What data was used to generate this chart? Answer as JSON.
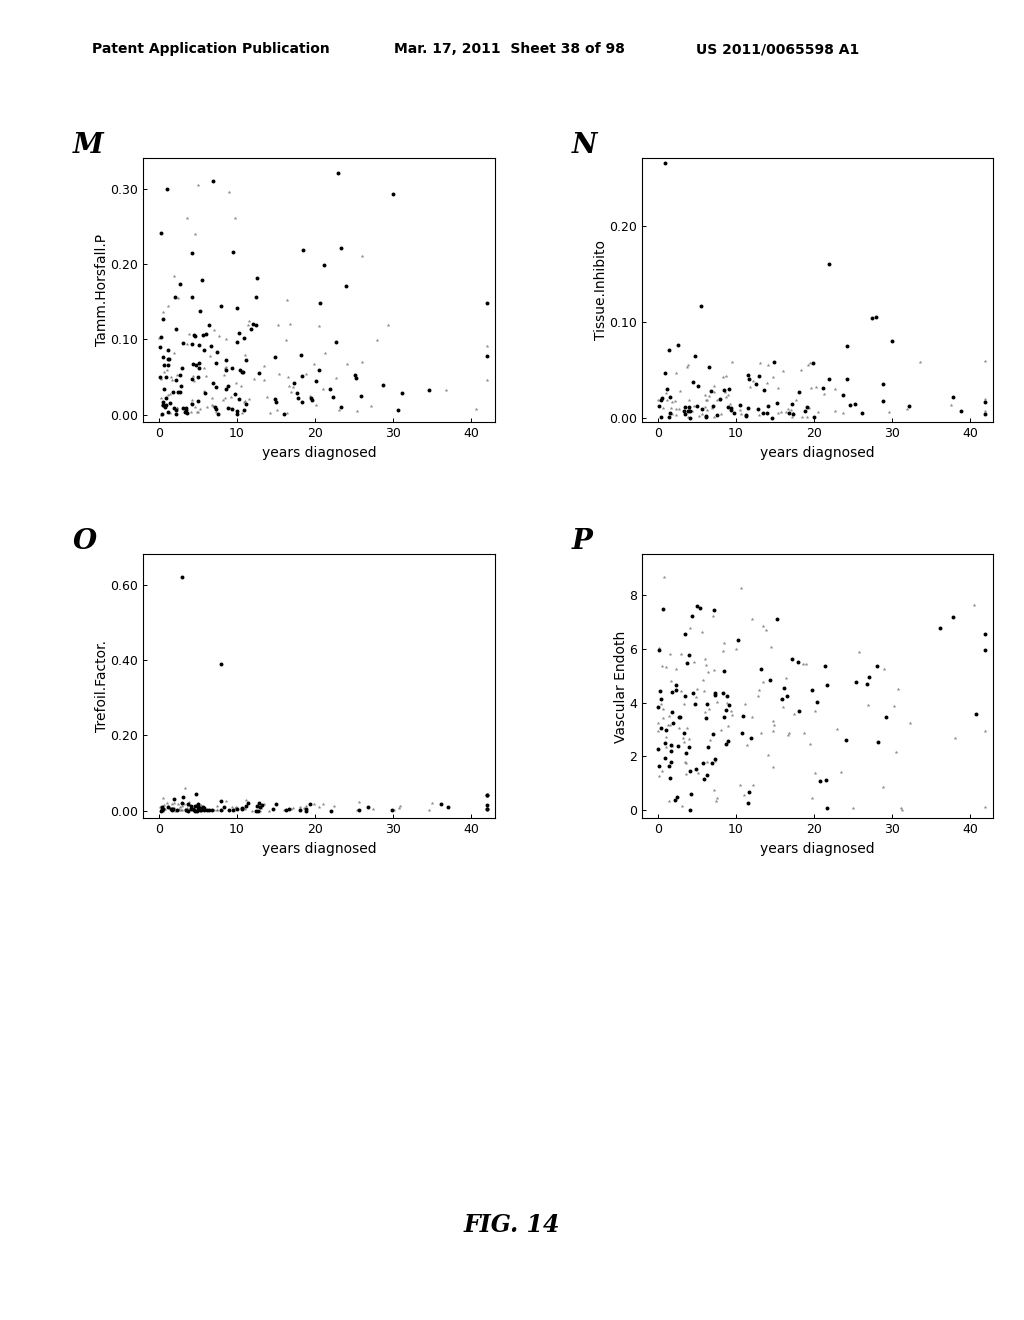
{
  "header_left": "Patent Application Publication",
  "header_mid": "Mar. 17, 2011  Sheet 38 of 98",
  "header_right": "US 2011/0065598 A1",
  "footer": "FIG. 14",
  "plots": [
    {
      "label": "M",
      "ylabel": "Tamm.Horsfall.P",
      "xlabel": "years diagnosed",
      "xlim": [
        -2,
        43
      ],
      "ylim": [
        -0.01,
        0.34
      ],
      "yticks": [
        0.0,
        0.1,
        0.2,
        0.3
      ],
      "xticks": [
        0,
        10,
        20,
        30,
        40
      ]
    },
    {
      "label": "N",
      "ylabel": "Tissue.Inhibito",
      "xlabel": "years diagnosed",
      "xlim": [
        -2,
        43
      ],
      "ylim": [
        -0.005,
        0.27
      ],
      "yticks": [
        0.0,
        0.1,
        0.2
      ],
      "xticks": [
        0,
        10,
        20,
        30,
        40
      ]
    },
    {
      "label": "O",
      "ylabel": "Trefoil.Factor.",
      "xlabel": "years diagnosed",
      "xlim": [
        -2,
        43
      ],
      "ylim": [
        -0.02,
        0.68
      ],
      "yticks": [
        0.0,
        0.2,
        0.4,
        0.6
      ],
      "xticks": [
        0,
        10,
        20,
        30,
        40
      ]
    },
    {
      "label": "P",
      "ylabel": "Vascular Endoth",
      "xlabel": "years diagnosed",
      "xlim": [
        -2,
        43
      ],
      "ylim": [
        -0.3,
        9.5
      ],
      "yticks": [
        0,
        2,
        4,
        6,
        8
      ],
      "xticks": [
        0,
        10,
        20,
        30,
        40
      ]
    }
  ],
  "bg_color": "#ffffff",
  "label_fontsize": 20,
  "tick_fontsize": 9,
  "axis_label_fontsize": 10,
  "header_fontsize": 10
}
